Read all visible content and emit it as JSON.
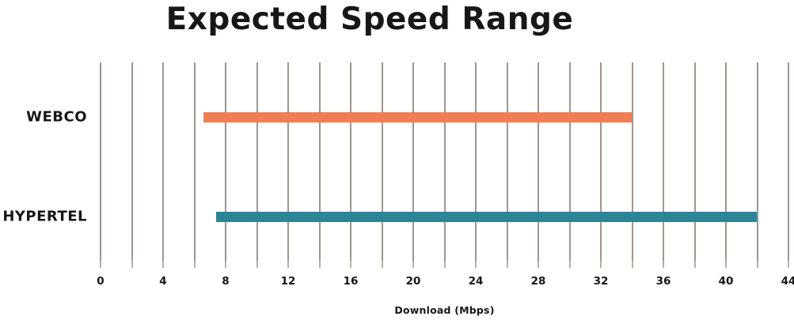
{
  "chart_data": {
    "type": "bar",
    "variant": "horizontal-range-bars",
    "title": "Expected Speed Range",
    "xlabel": "Download (Mbps)",
    "xlim": [
      0,
      44
    ],
    "gridline_step": 2,
    "tick_label_step": 4,
    "tick_labels": [
      "0",
      "4",
      "8",
      "12",
      "16",
      "20",
      "24",
      "28",
      "32",
      "36",
      "40",
      "44"
    ],
    "grid": "vertical gridlines only",
    "legend_position": "none",
    "categories": [
      "WEBCO",
      "HYPERTEL"
    ],
    "series": [
      {
        "name": "WEBCO",
        "range_start_mbps": 6.6,
        "range_end_mbps": 34,
        "color": "#f17d55"
      },
      {
        "name": "HYPERTEL",
        "range_start_mbps": 7.4,
        "range_end_mbps": 42,
        "color": "#2b8597"
      }
    ],
    "colors": {
      "gridline": "#9c9891",
      "tick": "#b4b0aa",
      "text": "#161719",
      "background": "#ffffff"
    }
  }
}
